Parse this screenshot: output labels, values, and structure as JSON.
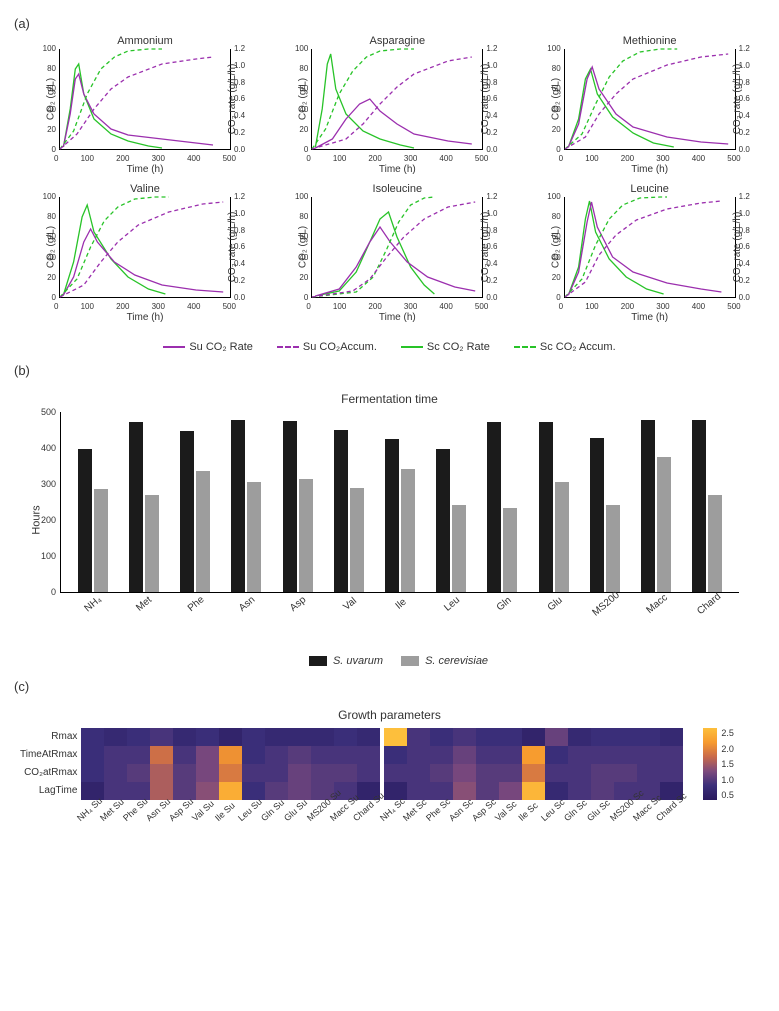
{
  "colors": {
    "su": "#9b2fae",
    "sc": "#28c328",
    "bar_su": "#1b1b1b",
    "bar_sc": "#9d9d9d",
    "axis": "#000000",
    "bg": "#ffffff"
  },
  "panelA": {
    "label": "(a)",
    "xLabel": "Time (h)",
    "yLeftLabel": "CO₂ (g/L)",
    "yRightLabel": "CO₂ rate (g/L/h)",
    "yLeftLim": [
      0,
      100
    ],
    "yLeftTicks": [
      100,
      80,
      60,
      40,
      20,
      0
    ],
    "yRightLim": [
      0,
      1.2
    ],
    "yRightTicks": [
      "1.2",
      "1.0",
      "0.8",
      "0.6",
      "0.4",
      "0.2",
      "0.0"
    ],
    "xLim": [
      0,
      500
    ],
    "xTicks": [
      0,
      100,
      200,
      300,
      400,
      500
    ],
    "legend": [
      {
        "label": "Su CO₂ Rate",
        "color": "#9b2fae",
        "dashed": false
      },
      {
        "label": "Su CO₂Accum.",
        "color": "#9b2fae",
        "dashed": true
      },
      {
        "label": "Sc CO₂ Rate",
        "color": "#28c328",
        "dashed": false
      },
      {
        "label": "Sc CO₂ Accum.",
        "color": "#28c328",
        "dashed": true
      }
    ],
    "charts": [
      {
        "title": "Ammonium",
        "suRate": [
          [
            10,
            2
          ],
          [
            30,
            35
          ],
          [
            45,
            70
          ],
          [
            55,
            75
          ],
          [
            70,
            55
          ],
          [
            100,
            35
          ],
          [
            150,
            20
          ],
          [
            200,
            14
          ],
          [
            300,
            10
          ],
          [
            400,
            6
          ],
          [
            450,
            4
          ]
        ],
        "scRate": [
          [
            10,
            2
          ],
          [
            30,
            40
          ],
          [
            45,
            80
          ],
          [
            55,
            85
          ],
          [
            70,
            55
          ],
          [
            100,
            30
          ],
          [
            150,
            15
          ],
          [
            200,
            8
          ],
          [
            260,
            3
          ],
          [
            300,
            1
          ]
        ],
        "suAccum": [
          [
            0,
            0
          ],
          [
            50,
            15
          ],
          [
            100,
            40
          ],
          [
            150,
            60
          ],
          [
            200,
            72
          ],
          [
            300,
            85
          ],
          [
            400,
            90
          ],
          [
            450,
            92
          ]
        ],
        "scAccum": [
          [
            0,
            0
          ],
          [
            40,
            18
          ],
          [
            80,
            55
          ],
          [
            120,
            80
          ],
          [
            160,
            92
          ],
          [
            200,
            98
          ],
          [
            260,
            100
          ],
          [
            300,
            100
          ]
        ]
      },
      {
        "title": "Asparagine",
        "suRate": [
          [
            10,
            1
          ],
          [
            60,
            10
          ],
          [
            100,
            30
          ],
          [
            140,
            45
          ],
          [
            170,
            50
          ],
          [
            200,
            38
          ],
          [
            250,
            25
          ],
          [
            300,
            15
          ],
          [
            400,
            8
          ],
          [
            470,
            5
          ]
        ],
        "scRate": [
          [
            10,
            2
          ],
          [
            30,
            40
          ],
          [
            45,
            85
          ],
          [
            55,
            95
          ],
          [
            70,
            60
          ],
          [
            100,
            35
          ],
          [
            150,
            18
          ],
          [
            200,
            10
          ],
          [
            260,
            4
          ],
          [
            300,
            1
          ]
        ],
        "suAccum": [
          [
            0,
            0
          ],
          [
            100,
            10
          ],
          [
            150,
            25
          ],
          [
            200,
            45
          ],
          [
            250,
            62
          ],
          [
            300,
            75
          ],
          [
            400,
            88
          ],
          [
            470,
            92
          ]
        ],
        "scAccum": [
          [
            0,
            0
          ],
          [
            40,
            20
          ],
          [
            80,
            55
          ],
          [
            120,
            78
          ],
          [
            160,
            92
          ],
          [
            200,
            98
          ],
          [
            260,
            100
          ],
          [
            300,
            100
          ]
        ]
      },
      {
        "title": "Methionine",
        "suRate": [
          [
            10,
            2
          ],
          [
            40,
            25
          ],
          [
            65,
            70
          ],
          [
            80,
            82
          ],
          [
            100,
            60
          ],
          [
            150,
            35
          ],
          [
            200,
            22
          ],
          [
            300,
            12
          ],
          [
            400,
            7
          ],
          [
            480,
            5
          ]
        ],
        "scRate": [
          [
            10,
            2
          ],
          [
            40,
            30
          ],
          [
            60,
            70
          ],
          [
            75,
            80
          ],
          [
            95,
            55
          ],
          [
            140,
            32
          ],
          [
            200,
            16
          ],
          [
            260,
            6
          ],
          [
            320,
            2
          ]
        ],
        "suAccum": [
          [
            0,
            0
          ],
          [
            60,
            12
          ],
          [
            100,
            35
          ],
          [
            150,
            55
          ],
          [
            200,
            70
          ],
          [
            300,
            84
          ],
          [
            400,
            92
          ],
          [
            480,
            95
          ]
        ],
        "scAccum": [
          [
            0,
            0
          ],
          [
            50,
            15
          ],
          [
            90,
            45
          ],
          [
            130,
            72
          ],
          [
            170,
            88
          ],
          [
            220,
            97
          ],
          [
            280,
            100
          ],
          [
            330,
            100
          ]
        ]
      },
      {
        "title": "Valine",
        "suRate": [
          [
            10,
            2
          ],
          [
            40,
            20
          ],
          [
            70,
            55
          ],
          [
            90,
            68
          ],
          [
            110,
            55
          ],
          [
            160,
            35
          ],
          [
            220,
            22
          ],
          [
            300,
            12
          ],
          [
            400,
            7
          ],
          [
            480,
            5
          ]
        ],
        "scRate": [
          [
            10,
            2
          ],
          [
            40,
            35
          ],
          [
            65,
            80
          ],
          [
            80,
            92
          ],
          [
            100,
            65
          ],
          [
            150,
            38
          ],
          [
            200,
            20
          ],
          [
            260,
            8
          ],
          [
            310,
            3
          ]
        ],
        "suAccum": [
          [
            0,
            0
          ],
          [
            70,
            12
          ],
          [
            120,
            35
          ],
          [
            170,
            55
          ],
          [
            230,
            72
          ],
          [
            320,
            85
          ],
          [
            420,
            93
          ],
          [
            480,
            95
          ]
        ],
        "scAccum": [
          [
            0,
            0
          ],
          [
            50,
            18
          ],
          [
            90,
            50
          ],
          [
            130,
            76
          ],
          [
            170,
            90
          ],
          [
            220,
            98
          ],
          [
            280,
            100
          ],
          [
            320,
            100
          ]
        ]
      },
      {
        "title": "Isoleucine",
        "suRate": [
          [
            10,
            1
          ],
          [
            80,
            8
          ],
          [
            130,
            30
          ],
          [
            170,
            55
          ],
          [
            200,
            70
          ],
          [
            230,
            55
          ],
          [
            280,
            35
          ],
          [
            340,
            20
          ],
          [
            420,
            10
          ],
          [
            480,
            6
          ]
        ],
        "scRate": [
          [
            10,
            1
          ],
          [
            80,
            6
          ],
          [
            130,
            25
          ],
          [
            170,
            55
          ],
          [
            200,
            78
          ],
          [
            225,
            85
          ],
          [
            250,
            60
          ],
          [
            290,
            30
          ],
          [
            330,
            12
          ],
          [
            360,
            3
          ]
        ],
        "suAccum": [
          [
            0,
            0
          ],
          [
            120,
            6
          ],
          [
            170,
            18
          ],
          [
            220,
            40
          ],
          [
            270,
            60
          ],
          [
            330,
            78
          ],
          [
            400,
            90
          ],
          [
            480,
            95
          ]
        ],
        "scAccum": [
          [
            0,
            0
          ],
          [
            130,
            5
          ],
          [
            180,
            20
          ],
          [
            220,
            48
          ],
          [
            255,
            75
          ],
          [
            290,
            92
          ],
          [
            330,
            99
          ],
          [
            360,
            100
          ]
        ]
      },
      {
        "title": "Leucine",
        "suRate": [
          [
            10,
            2
          ],
          [
            40,
            25
          ],
          [
            65,
            75
          ],
          [
            78,
            95
          ],
          [
            95,
            70
          ],
          [
            140,
            40
          ],
          [
            200,
            25
          ],
          [
            300,
            14
          ],
          [
            400,
            8
          ],
          [
            460,
            5
          ]
        ],
        "scRate": [
          [
            10,
            2
          ],
          [
            40,
            30
          ],
          [
            60,
            78
          ],
          [
            72,
            96
          ],
          [
            90,
            65
          ],
          [
            130,
            38
          ],
          [
            180,
            20
          ],
          [
            240,
            8
          ],
          [
            290,
            3
          ]
        ],
        "suAccum": [
          [
            0,
            0
          ],
          [
            60,
            15
          ],
          [
            100,
            42
          ],
          [
            150,
            62
          ],
          [
            210,
            77
          ],
          [
            300,
            88
          ],
          [
            400,
            94
          ],
          [
            460,
            96
          ]
        ],
        "scAccum": [
          [
            0,
            0
          ],
          [
            50,
            18
          ],
          [
            90,
            52
          ],
          [
            130,
            78
          ],
          [
            170,
            92
          ],
          [
            220,
            99
          ],
          [
            280,
            100
          ],
          [
            300,
            100
          ]
        ]
      }
    ]
  },
  "panelB": {
    "label": "(b)",
    "title": "Fermentation time",
    "yLabel": "Hours",
    "yLim": [
      0,
      500
    ],
    "yTicks": [
      500,
      400,
      300,
      200,
      100,
      0
    ],
    "legend": [
      {
        "label": "S. uvarum",
        "color": "#1b1b1b"
      },
      {
        "label": "S. cerevisiae",
        "color": "#9d9d9d"
      }
    ],
    "categories": [
      "NH₄",
      "Met",
      "Phe",
      "Asn",
      "Asp",
      "Val",
      "Ile",
      "Leu",
      "Gln",
      "Glu",
      "MS200",
      "Macc",
      "Chard"
    ],
    "su": [
      398,
      473,
      448,
      479,
      475,
      450,
      426,
      398,
      471,
      472,
      427,
      478,
      477
    ],
    "sc": [
      285,
      269,
      337,
      305,
      313,
      290,
      341,
      242,
      233,
      305,
      241,
      376,
      269
    ]
  },
  "panelC": {
    "label": "(c)",
    "title": "Growth parameters",
    "rows": [
      "Rmax",
      "TimeAtRmax",
      "CO₂atRmax",
      "LagTime"
    ],
    "cols": [
      "NH₄ Su",
      "Met Su",
      "Phe Su",
      "Asn Su",
      "Asp Su",
      "Val Su",
      "Ile Su",
      "Leu Su",
      "Gln Su",
      "Glu Su",
      "MS200 Su",
      "Macc Su",
      "Chard Su",
      "NH₄ Sc",
      "Met Sc",
      "Phe Sc",
      "Asn Sc",
      "Asp Sc",
      "Val Sc",
      "Ile Sc",
      "Leu Sc",
      "Gln Sc",
      "Glu Sc",
      "MS200 Sc",
      "Macc Sc",
      "Chard Sc"
    ],
    "splitAfter": 13,
    "scaleLim": [
      0.5,
      2.6
    ],
    "scaleTicks": [
      "2.5",
      "2.0",
      "1.5",
      "1.0",
      "0.5"
    ],
    "colorStops": [
      "#2a1a5e",
      "#3b2f7a",
      "#7d4a7d",
      "#c96a4a",
      "#f79a2e",
      "#fdbf3c"
    ],
    "values": [
      [
        0.9,
        0.8,
        0.9,
        1.0,
        0.8,
        0.9,
        0.7,
        0.9,
        0.8,
        0.8,
        0.8,
        0.9,
        0.8,
        2.6,
        1.0,
        0.9,
        1.0,
        0.9,
        0.9,
        0.7,
        1.2,
        0.8,
        0.9,
        0.9,
        0.9,
        0.8
      ],
      [
        0.9,
        1.0,
        1.0,
        1.8,
        1.0,
        1.3,
        2.1,
        0.9,
        1.0,
        1.1,
        1.0,
        1.0,
        1.0,
        0.9,
        1.0,
        1.0,
        1.2,
        1.0,
        1.0,
        2.2,
        0.9,
        1.0,
        1.0,
        1.0,
        1.0,
        1.0
      ],
      [
        0.9,
        1.0,
        1.1,
        1.6,
        1.1,
        1.3,
        1.9,
        1.0,
        1.0,
        1.2,
        1.1,
        1.1,
        1.0,
        1.0,
        1.0,
        1.1,
        1.3,
        1.1,
        1.1,
        1.9,
        1.0,
        1.0,
        1.1,
        1.1,
        1.0,
        1.0
      ],
      [
        0.7,
        1.0,
        1.0,
        1.6,
        1.1,
        1.4,
        2.4,
        0.9,
        1.1,
        1.2,
        1.1,
        1.0,
        0.7,
        0.7,
        1.0,
        1.0,
        1.4,
        1.1,
        1.3,
        2.5,
        0.8,
        1.0,
        1.1,
        1.0,
        1.0,
        0.7
      ]
    ]
  }
}
